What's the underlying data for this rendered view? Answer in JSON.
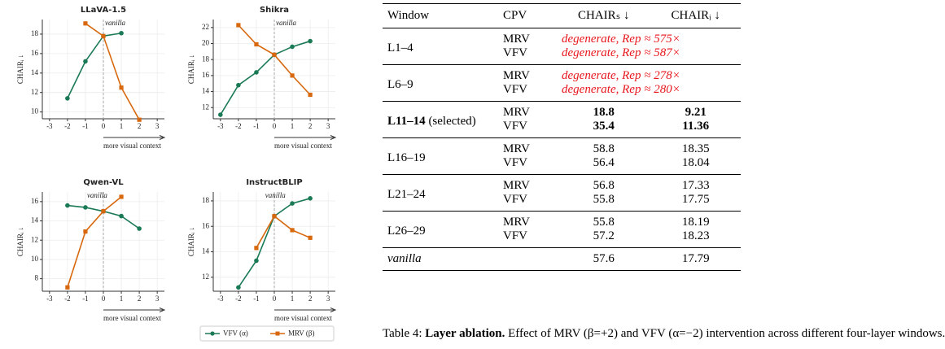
{
  "chart_data": [
    {
      "type": "line",
      "title": "LLaVA-1.5",
      "xlabel": "more visual context",
      "ylabel": "CHAIRᵢ ↓",
      "x": [
        -3,
        -2,
        -1,
        0,
        1,
        2
      ],
      "xlim": [
        -3.4,
        3.4
      ],
      "xticks": [
        -3,
        -2,
        -1,
        0,
        1,
        2,
        3
      ],
      "ylim": [
        9.3,
        19.5
      ],
      "yticks": [
        10,
        12,
        14,
        16,
        18
      ],
      "grid": true,
      "annotation": {
        "text": "vanilla",
        "x": 0
      },
      "series": [
        {
          "name": "VFV (α)",
          "color": "#1b7a56",
          "marker": "circle",
          "values": [
            null,
            11.4,
            15.2,
            17.8,
            18.1,
            null
          ]
        },
        {
          "name": "MRV (β)",
          "color": "#d8680d",
          "marker": "square",
          "values": [
            null,
            null,
            19.1,
            17.8,
            12.5,
            9.2
          ]
        }
      ]
    },
    {
      "type": "line",
      "title": "Shikra",
      "xlabel": "more visual context",
      "ylabel": "CHAIRᵢ ↓",
      "x": [
        -3,
        -2,
        -1,
        0,
        1,
        2
      ],
      "xlim": [
        -3.4,
        3.4
      ],
      "xticks": [
        -3,
        -2,
        -1,
        0,
        1,
        2,
        3
      ],
      "ylim": [
        10.6,
        23.0
      ],
      "yticks": [
        12,
        14,
        16,
        18,
        20,
        22
      ],
      "grid": true,
      "annotation": {
        "text": "vanilla",
        "x": 0
      },
      "series": [
        {
          "name": "VFV (α)",
          "color": "#1b7a56",
          "marker": "circle",
          "values": [
            11.1,
            14.8,
            16.4,
            18.6,
            19.6,
            20.3
          ]
        },
        {
          "name": "MRV (β)",
          "color": "#d8680d",
          "marker": "square",
          "values": [
            null,
            22.3,
            19.9,
            18.6,
            16.0,
            13.6
          ]
        }
      ]
    },
    {
      "type": "line",
      "title": "Qwen-VL",
      "xlabel": "more visual context",
      "ylabel": "CHAIRᵢ ↓",
      "x": [
        -3,
        -2,
        -1,
        0,
        1,
        2
      ],
      "xlim": [
        -3.4,
        3.4
      ],
      "xticks": [
        -3,
        -2,
        -1,
        0,
        1,
        2,
        3
      ],
      "ylim": [
        6.7,
        17.0
      ],
      "yticks": [
        8,
        10,
        12,
        14,
        16
      ],
      "grid": true,
      "annotation": {
        "text": "vanilla",
        "x": -1
      },
      "series": [
        {
          "name": "VFV (α)",
          "color": "#1b7a56",
          "marker": "circle",
          "values": [
            null,
            15.6,
            15.4,
            15.0,
            14.5,
            13.2
          ]
        },
        {
          "name": "MRV (β)",
          "color": "#d8680d",
          "marker": "square",
          "values": [
            null,
            7.1,
            12.9,
            15.0,
            16.5,
            null
          ]
        }
      ]
    },
    {
      "type": "line",
      "title": "InstructBLIP",
      "xlabel": "more visual context",
      "ylabel": "CHAIRᵢ ↓",
      "x": [
        -3,
        -2,
        -1,
        0,
        1,
        2
      ],
      "xlim": [
        -3.4,
        3.4
      ],
      "xticks": [
        -3,
        -2,
        -1,
        0,
        1,
        2,
        3
      ],
      "ylim": [
        10.9,
        18.7
      ],
      "yticks": [
        12,
        14,
        16,
        18
      ],
      "grid": true,
      "annotation": {
        "text": "vanilla",
        "x": -0.6
      },
      "series": [
        {
          "name": "VFV (α)",
          "color": "#1b7a56",
          "marker": "circle",
          "values": [
            null,
            11.2,
            13.3,
            16.8,
            17.8,
            18.2
          ]
        },
        {
          "name": "MRV (β)",
          "color": "#d8680d",
          "marker": "square",
          "values": [
            null,
            null,
            14.3,
            16.8,
            15.7,
            15.1
          ]
        }
      ]
    }
  ],
  "table": {
    "header": [
      "Window",
      "CPV",
      "CHAIRₛ ↓",
      "CHAIRᵢ ↓"
    ],
    "groups": [
      {
        "window": "L1–4",
        "rows": [
          [
            "MRV",
            "degenerate, Rep ≈ 575×"
          ],
          [
            "VFV",
            "degenerate, Rep ≈ 587×"
          ]
        ]
      },
      {
        "window": "L6–9",
        "rows": [
          [
            "MRV",
            "degenerate, Rep ≈ 278×"
          ],
          [
            "VFV",
            "degenerate, Rep ≈ 280×"
          ]
        ]
      },
      {
        "window": "L11–14",
        "note": "(selected)",
        "rows": [
          [
            "MRV",
            "18.8",
            "9.21"
          ],
          [
            "VFV",
            "35.4",
            "11.36"
          ]
        ]
      },
      {
        "window": "L16–19",
        "rows": [
          [
            "MRV",
            "58.8",
            "18.35"
          ],
          [
            "VFV",
            "56.4",
            "18.04"
          ]
        ]
      },
      {
        "window": "L21–24",
        "rows": [
          [
            "MRV",
            "56.8",
            "17.33"
          ],
          [
            "VFV",
            "55.8",
            "17.75"
          ]
        ]
      },
      {
        "window": "L26–29",
        "rows": [
          [
            "MRV",
            "55.8",
            "18.19"
          ],
          [
            "VFV",
            "57.2",
            "18.23"
          ]
        ]
      },
      {
        "window": "vanilla",
        "rows": [
          [
            "57.6",
            "17.79"
          ]
        ]
      }
    ]
  },
  "caption": {
    "label": "Table 4:",
    "bold": "Layer ablation.",
    "text": "Effect of MRV (β=+2) and VFV (α=−2) intervention across different four-layer windows."
  }
}
